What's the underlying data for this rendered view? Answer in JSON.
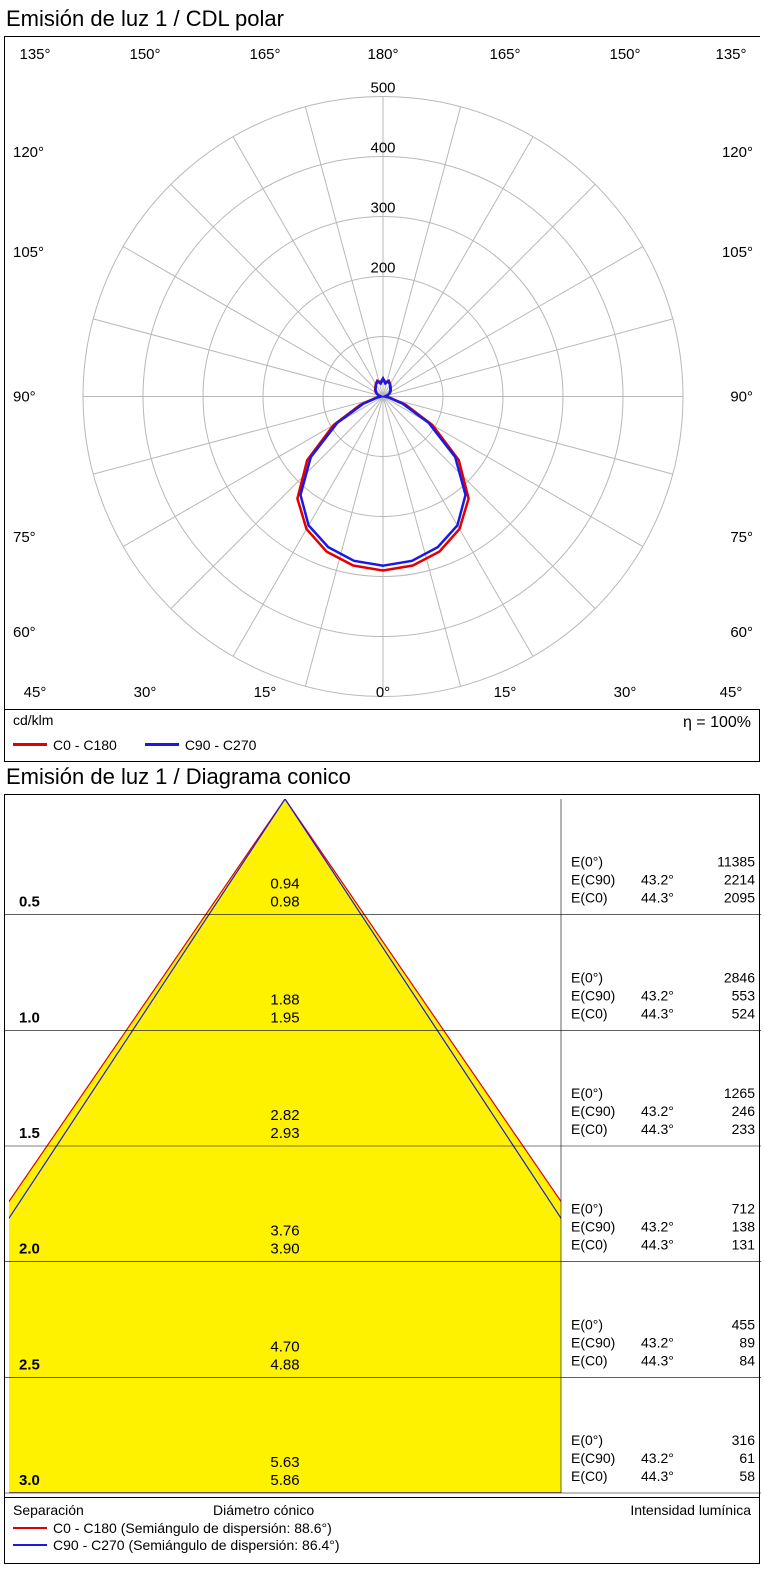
{
  "polar": {
    "title": "Emisión de luz 1 / CDL polar",
    "unit": "cd/klm",
    "eta": "η = 100%",
    "rings": [
      100,
      200,
      300,
      400,
      500
    ],
    "ring_labels": [
      "200",
      "300",
      "400",
      "500"
    ],
    "angle_ticks_full": [
      0,
      15,
      30,
      45,
      60,
      75,
      90,
      105,
      120,
      135,
      150,
      165,
      180
    ],
    "angle_labels_outer_top": [
      "135°",
      "150°",
      "165°",
      "180°",
      "165°",
      "150°",
      "135°"
    ],
    "angle_labels_outer_bottom": [
      "45°",
      "30°",
      "15°",
      "0°",
      "15°",
      "30°",
      "45°"
    ],
    "angle_labels_left": [
      "120°",
      "105°",
      "90°",
      "75°",
      "60°"
    ],
    "angle_labels_right": [
      "120°",
      "105°",
      "90°",
      "75°",
      "60°"
    ],
    "grid_color": "#b8b8b8",
    "bg_color": "#ffffff",
    "series": [
      {
        "label": "C0 - C180",
        "color": "#e30000",
        "width": 2.5,
        "points": [
          [
            0,
            290
          ],
          [
            10,
            286
          ],
          [
            20,
            275
          ],
          [
            30,
            255
          ],
          [
            40,
            222
          ],
          [
            50,
            165
          ],
          [
            60,
            95
          ],
          [
            70,
            40
          ],
          [
            80,
            12
          ],
          [
            90,
            4
          ],
          [
            100,
            6
          ],
          [
            110,
            10
          ],
          [
            120,
            14
          ],
          [
            130,
            17
          ],
          [
            140,
            20
          ],
          [
            150,
            24
          ],
          [
            160,
            28
          ],
          [
            170,
            24
          ],
          [
            180,
            30
          ],
          [
            190,
            24
          ],
          [
            200,
            28
          ],
          [
            210,
            24
          ],
          [
            220,
            20
          ],
          [
            230,
            17
          ],
          [
            240,
            14
          ],
          [
            250,
            10
          ],
          [
            260,
            6
          ],
          [
            270,
            4
          ],
          [
            280,
            12
          ],
          [
            290,
            40
          ],
          [
            300,
            95
          ],
          [
            310,
            165
          ],
          [
            320,
            222
          ],
          [
            330,
            255
          ],
          [
            340,
            275
          ],
          [
            350,
            286
          ],
          [
            360,
            290
          ]
        ]
      },
      {
        "label": "C90 - C270",
        "color": "#1a1ae6",
        "width": 2.5,
        "points": [
          [
            0,
            282
          ],
          [
            10,
            278
          ],
          [
            20,
            267
          ],
          [
            30,
            248
          ],
          [
            40,
            214
          ],
          [
            50,
            157
          ],
          [
            60,
            88
          ],
          [
            70,
            35
          ],
          [
            80,
            10
          ],
          [
            90,
            3
          ],
          [
            100,
            5
          ],
          [
            110,
            9
          ],
          [
            120,
            13
          ],
          [
            130,
            16
          ],
          [
            140,
            19
          ],
          [
            150,
            23
          ],
          [
            160,
            27
          ],
          [
            170,
            22
          ],
          [
            180,
            30
          ],
          [
            190,
            22
          ],
          [
            200,
            27
          ],
          [
            210,
            23
          ],
          [
            220,
            19
          ],
          [
            230,
            16
          ],
          [
            240,
            13
          ],
          [
            250,
            9
          ],
          [
            260,
            5
          ],
          [
            270,
            3
          ],
          [
            280,
            10
          ],
          [
            290,
            35
          ],
          [
            300,
            88
          ],
          [
            310,
            157
          ],
          [
            320,
            214
          ],
          [
            330,
            248
          ],
          [
            340,
            267
          ],
          [
            350,
            278
          ],
          [
            360,
            282
          ]
        ]
      }
    ]
  },
  "cone": {
    "title": "Emisión de luz 1 / Diagrama conico",
    "header_left": "Separación",
    "header_mid": "Diámetro cónico",
    "header_right": "Intensidad lumínica",
    "fill_color": "#fff200",
    "line1": {
      "label": "C0 - C180 (Semiángulo de dispersión: 88.6°)",
      "color": "#e30000"
    },
    "line2": {
      "label": "C90 - C270 (Semiángulo de dispersión: 86.4°)",
      "color": "#1a1ae6"
    },
    "half_angle_c0": 88.6,
    "half_angle_c90": 86.4,
    "rows": [
      {
        "sep": "0.5",
        "d1": "0.94",
        "d2": "0.98",
        "e0": "11385",
        "ang90": "43.2°",
        "e90": "2214",
        "ang0": "44.3°",
        "ec0": "2095"
      },
      {
        "sep": "1.0",
        "d1": "1.88",
        "d2": "1.95",
        "e0": "2846",
        "ang90": "43.2°",
        "e90": "553",
        "ang0": "44.3°",
        "ec0": "524"
      },
      {
        "sep": "1.5",
        "d1": "2.82",
        "d2": "2.93",
        "e0": "1265",
        "ang90": "43.2°",
        "e90": "246",
        "ang0": "44.3°",
        "ec0": "233"
      },
      {
        "sep": "2.0",
        "d1": "3.76",
        "d2": "3.90",
        "e0": "712",
        "ang90": "43.2°",
        "e90": "138",
        "ang0": "44.3°",
        "ec0": "131"
      },
      {
        "sep": "2.5",
        "d1": "4.70",
        "d2": "4.88",
        "e0": "455",
        "ang90": "43.2°",
        "e90": "89",
        "ang0": "44.3°",
        "ec0": "84"
      },
      {
        "sep": "3.0",
        "d1": "5.63",
        "d2": "5.86",
        "e0": "316",
        "ang90": "43.2°",
        "e90": "61",
        "ang0": "44.3°",
        "ec0": "58"
      }
    ]
  }
}
